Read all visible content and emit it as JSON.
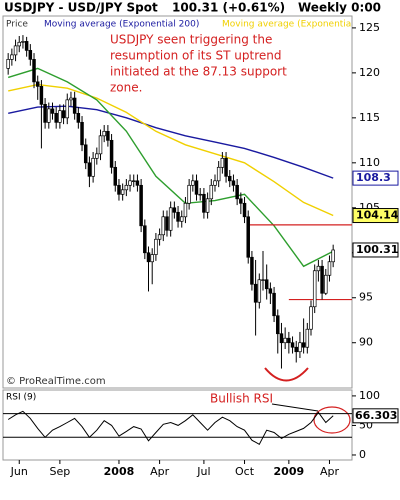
{
  "header": {
    "symbol": "USDJPY - USD/JPY Spot",
    "quote": "100.31 (+0.61%)",
    "period": "Weekly 0:00"
  },
  "chart_data": [
    {
      "type": "candlestick",
      "price_label": "Price",
      "open": [
        120.5,
        121.5,
        122.0,
        123.0,
        123.4,
        123.5,
        122.5,
        121.5,
        119.0,
        118.5,
        116.5,
        114.5,
        116.0,
        115.5,
        114.5,
        115.8,
        115.0,
        117.0,
        117.2,
        115.5,
        114.5,
        112.0,
        110.0,
        108.5,
        110.5,
        111.0,
        113.0,
        113.5,
        112.5,
        109.5,
        107.5,
        106.5,
        107.0,
        107.5,
        108.0,
        108.0,
        107.5,
        103.0,
        100.0,
        99.0,
        99.8,
        101.5,
        102.0,
        104.0,
        102.5,
        105.0,
        104.5,
        103.5,
        104.0,
        105.5,
        107.5,
        108.0,
        106.5,
        106.5,
        104.5,
        106.0,
        107.5,
        108.0,
        109.5,
        110.5,
        108.5,
        108.0,
        107.5,
        106.0,
        105.5,
        104.0,
        99.5,
        96.5,
        94.5,
        97.0,
        97.0,
        96.0,
        95.5,
        93.0,
        91.0,
        90.0,
        90.5,
        90.0,
        89.5,
        89.0,
        90.0,
        89.5,
        91.5,
        94.0,
        98.0,
        98.5,
        95.5,
        97.5,
        99.0
      ],
      "high": [
        122.2,
        122.7,
        123.7,
        124.1,
        124.2,
        124.0,
        123.2,
        122.2,
        119.7,
        119.2,
        117.2,
        116.7,
        116.7,
        116.2,
        116.5,
        116.5,
        117.7,
        117.9,
        117.9,
        116.2,
        115.2,
        112.7,
        110.7,
        111.2,
        111.7,
        113.7,
        114.2,
        114.2,
        113.2,
        110.2,
        108.2,
        107.7,
        108.2,
        108.7,
        108.7,
        108.7,
        108.2,
        103.7,
        100.7,
        100.5,
        102.2,
        102.7,
        104.7,
        104.7,
        105.7,
        105.7,
        105.2,
        104.7,
        106.2,
        108.2,
        108.7,
        108.7,
        107.2,
        107.2,
        106.7,
        108.2,
        108.7,
        110.2,
        111.2,
        111.2,
        109.2,
        108.7,
        108.2,
        106.7,
        106.2,
        104.7,
        100.2,
        99.2,
        97.7,
        100.2,
        98.7,
        96.7,
        96.2,
        93.7,
        92.2,
        91.7,
        91.2,
        90.7,
        90.2,
        91.2,
        92.7,
        92.2,
        94.7,
        98.7,
        99.2,
        99.2,
        98.2,
        99.7,
        100.9
      ],
      "low": [
        119.8,
        120.8,
        121.3,
        122.3,
        122.7,
        121.8,
        120.8,
        118.3,
        117.0,
        111.6,
        113.8,
        113.8,
        114.8,
        113.8,
        113.8,
        114.3,
        114.3,
        116.3,
        114.8,
        113.8,
        111.3,
        109.3,
        107.3,
        107.8,
        109.8,
        110.3,
        112.3,
        111.8,
        108.8,
        106.8,
        105.8,
        105.8,
        106.3,
        106.8,
        107.3,
        106.8,
        102.3,
        99.3,
        95.7,
        96.5,
        99.1,
        100.8,
        101.3,
        101.8,
        101.8,
        103.8,
        102.8,
        102.8,
        103.3,
        104.8,
        106.8,
        105.8,
        105.8,
        103.8,
        103.8,
        105.3,
        106.8,
        107.3,
        108.8,
        107.8,
        107.3,
        106.8,
        105.3,
        104.3,
        103.3,
        98.8,
        95.8,
        90.8,
        93.8,
        95.8,
        94.8,
        94.3,
        92.3,
        88.8,
        87.13,
        89.3,
        88.8,
        88.8,
        87.8,
        88.3,
        88.8,
        88.8,
        90.8,
        93.3,
        96.8,
        94.8,
        95.3,
        96.8,
        98.4
      ],
      "close": [
        121.5,
        122.0,
        123.0,
        123.4,
        123.5,
        122.5,
        121.5,
        119.0,
        118.5,
        116.5,
        114.5,
        116.0,
        115.5,
        114.5,
        115.8,
        115.0,
        117.0,
        117.2,
        115.5,
        114.5,
        112.0,
        110.0,
        108.5,
        110.5,
        111.0,
        113.0,
        113.5,
        112.5,
        109.5,
        107.5,
        106.5,
        107.0,
        107.5,
        108.0,
        108.0,
        107.5,
        103.0,
        100.0,
        99.0,
        99.8,
        101.5,
        102.0,
        104.0,
        102.5,
        105.0,
        104.5,
        103.5,
        104.0,
        105.5,
        107.5,
        108.0,
        106.5,
        106.5,
        104.5,
        106.0,
        107.5,
        108.0,
        109.5,
        110.5,
        108.5,
        108.0,
        107.5,
        106.0,
        105.5,
        104.0,
        99.5,
        96.5,
        94.5,
        97.0,
        97.0,
        96.0,
        95.5,
        93.0,
        91.0,
        90.0,
        90.5,
        90.0,
        89.5,
        89.0,
        90.0,
        89.5,
        91.5,
        94.0,
        98.0,
        98.5,
        95.5,
        97.5,
        99.0,
        100.31
      ],
      "up_color": "#ffffff",
      "down_color": "#000000",
      "xlim": [
        -1.4,
        93.1
      ],
      "ylim": [
        85.3,
        126.1
      ],
      "yticks": [
        90,
        95,
        100,
        105,
        110,
        115,
        120,
        125
      ],
      "xticks": [
        {
          "value": 3,
          "label": "Jun"
        },
        {
          "value": 14,
          "label": "Sep"
        },
        {
          "value": 30,
          "label": "2008"
        },
        {
          "value": 41,
          "label": "Apr"
        },
        {
          "value": 53,
          "label": "Jul"
        },
        {
          "value": 64,
          "label": "Oct"
        },
        {
          "value": 76,
          "label": "2009"
        },
        {
          "value": 87,
          "label": "Apr"
        }
      ],
      "series": [
        {
          "name": "Moving average (Exponential 200)",
          "color": "#1a1aa0",
          "x": [
            0,
            8,
            16,
            24,
            32,
            40,
            48,
            56,
            64,
            72,
            80,
            88
          ],
          "values": [
            115.5,
            116.2,
            116.3,
            115.9,
            115.0,
            113.9,
            113.0,
            112.3,
            111.6,
            110.6,
            109.5,
            108.3
          ]
        },
        {
          "name": "Moving average (Exponential",
          "color": "#f0d000",
          "x": [
            0,
            8,
            16,
            24,
            32,
            40,
            48,
            56,
            64,
            72,
            80,
            88
          ],
          "values": [
            118.0,
            118.7,
            118.3,
            117.2,
            115.6,
            113.5,
            112.0,
            111.0,
            110.0,
            107.9,
            105.6,
            104.14
          ]
        },
        {
          "color": "#2e9e2e",
          "x": [
            0,
            8,
            16,
            24,
            32,
            40,
            48,
            56,
            64,
            72,
            80,
            88
          ],
          "values": [
            119.5,
            120.5,
            119.0,
            117.0,
            113.5,
            108.5,
            105.5,
            105.8,
            106.5,
            103.0,
            98.5,
            100.16
          ]
        }
      ],
      "levels": [
        {
          "value": 103.1,
          "from": 65
        },
        {
          "value": 94.8,
          "from": 76
        }
      ],
      "level_color": "#d42020",
      "annotation": [
        "USDJPY seen triggering the",
        "resumption of its ST uptrend",
        "initiated at the 87.13 support",
        "zone."
      ],
      "credit": "© ProRealTime.com"
    },
    {
      "type": "line",
      "title": "RSI (9)",
      "color": "#000000",
      "x": [
        0,
        2,
        4,
        6,
        8,
        10,
        12,
        14,
        16,
        18,
        20,
        22,
        24,
        26,
        28,
        30,
        32,
        34,
        36,
        38,
        40,
        42,
        44,
        46,
        48,
        50,
        52,
        54,
        56,
        58,
        60,
        62,
        64,
        66,
        68,
        70,
        72,
        74,
        76,
        78,
        80,
        82,
        84,
        86,
        88
      ],
      "values": [
        60,
        68,
        74,
        62,
        45,
        30,
        42,
        48,
        55,
        62,
        48,
        30,
        42,
        58,
        50,
        32,
        40,
        48,
        44,
        24,
        38,
        52,
        55,
        50,
        58,
        68,
        55,
        42,
        55,
        64,
        58,
        48,
        42,
        25,
        18,
        42,
        38,
        28,
        35,
        40,
        45,
        55,
        72,
        55,
        66.303
      ],
      "xlim": [
        -1.4,
        93.1
      ],
      "ylim": [
        -8.5,
        110
      ],
      "yticks": [
        0,
        50,
        100
      ],
      "levels": [
        30,
        70
      ],
      "annotation": "Bullish RSI"
    }
  ]
}
